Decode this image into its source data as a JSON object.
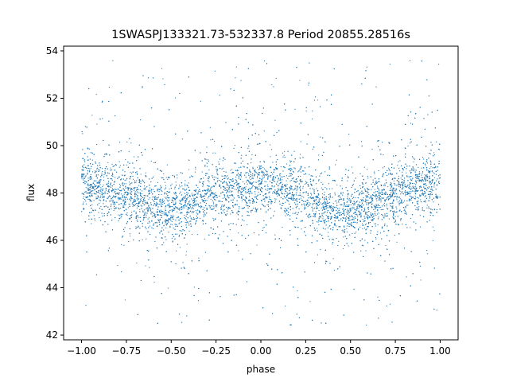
{
  "chart_data": {
    "type": "scatter",
    "title": "1SWASPJ133321.73-532337.8 Period 20855.28516s",
    "xlabel": "phase",
    "ylabel": "flux",
    "xlim": [
      -1.1,
      1.1
    ],
    "ylim": [
      41.8,
      54.2
    ],
    "xticks": [
      -1.0,
      -0.75,
      -0.5,
      -0.25,
      0.0,
      0.25,
      0.5,
      0.75,
      1.0
    ],
    "xtick_labels": [
      "−1.00",
      "−0.75",
      "−0.50",
      "−0.25",
      "0.00",
      "0.25",
      "0.50",
      "0.75",
      "1.00"
    ],
    "yticks": [
      42,
      44,
      46,
      48,
      50,
      52,
      54
    ],
    "ytick_labels": [
      "42",
      "44",
      "46",
      "48",
      "50",
      "52",
      "54"
    ],
    "grid": false,
    "point_color": "#1f77b4",
    "series": [
      {
        "x": [
          -1.0,
          -0.9,
          -0.8,
          -0.7,
          -0.6,
          -0.5,
          -0.4,
          -0.3,
          -0.2,
          -0.1,
          0.0,
          0.1,
          0.2,
          0.3,
          0.4,
          0.5,
          0.6,
          0.7,
          0.8,
          0.9,
          1.0
        ],
        "y": [
          48.3,
          48.3,
          48.1,
          47.8,
          47.4,
          47.2,
          47.5,
          47.9,
          48.1,
          48.2,
          48.3,
          48.2,
          48.0,
          47.7,
          47.3,
          47.2,
          47.4,
          47.8,
          48.1,
          48.3,
          48.3
        ]
      }
    ]
  }
}
